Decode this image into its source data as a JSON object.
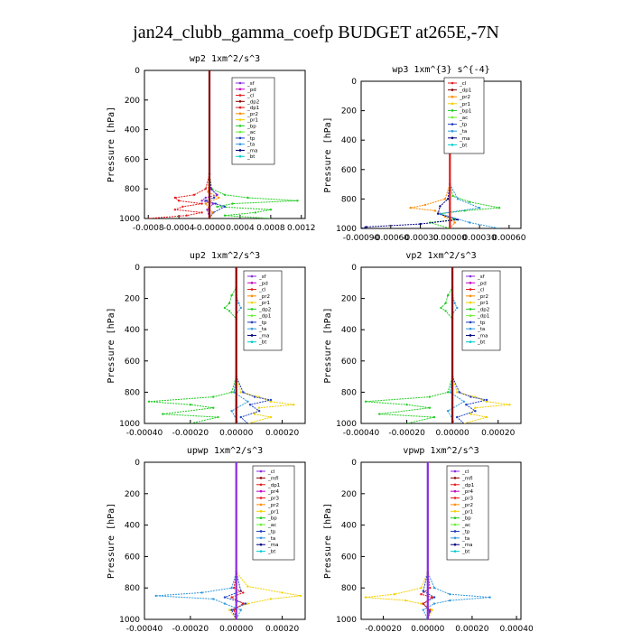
{
  "figure": {
    "title": "jan24_clubb_gamma_coefp  BUDGET at265E,-7N"
  },
  "colors": {
    "red": "#e41a1c",
    "darkred": "#8b0000",
    "purple": "#8a2be2",
    "magenta": "#c000c0",
    "orange": "#ff8c00",
    "yellow": "#f0d000",
    "green": "#22cc22",
    "lime": "#66ee33",
    "blue": "#1f3fbf",
    "skyblue": "#3399dd",
    "navy": "#000080",
    "cyan": "#00cccc",
    "black": "#000000"
  },
  "chart_data": [
    {
      "type": "line",
      "title": "wp2  1xm^2/s^3",
      "ylabel": "Pressure [hPa]",
      "ylim": [
        1000,
        0
      ],
      "yticks": [
        "0",
        "200",
        "400",
        "600",
        "800",
        "1000"
      ],
      "yticks_num": [
        0,
        200,
        400,
        600,
        800,
        1000
      ],
      "xlim": [
        -0.00085,
        0.00125
      ],
      "xticks_num": [
        -0.0008,
        -0.0004,
        0.0,
        0.0004,
        0.0008,
        0.0012
      ],
      "xticks": [
        "-0.0008",
        "-0.0004",
        "-0.0000",
        "0.0004",
        "0.0008",
        "0.0012"
      ],
      "legend": [
        "_sf",
        "_pd",
        "_cl",
        "_dp2",
        "_dp1",
        "_pr2",
        "_pr1",
        "_bp",
        "_ac",
        "_tp",
        "_ta",
        "_ma",
        "_bt"
      ],
      "legend_colors": [
        "purple",
        "magenta",
        "red",
        "darkred",
        "red",
        "orange",
        "yellow",
        "green",
        "lime",
        "blue",
        "skyblue",
        "navy",
        "cyan"
      ],
      "series": [
        {
          "color": "red",
          "p": [
            0,
            700,
            800,
            840,
            860,
            880,
            900,
            920,
            940,
            960,
            980,
            1000
          ],
          "v": [
            0,
            0,
            -5e-05,
            -0.0002,
            -0.00045,
            -0.0004,
            -0.0001,
            -0.00035,
            -0.00045,
            -0.0001,
            -0.0003,
            -0.0008
          ]
        },
        {
          "color": "green",
          "p": [
            0,
            700,
            800,
            840,
            860,
            880,
            900,
            920,
            940,
            960,
            980,
            1000
          ],
          "v": [
            0,
            0,
            3e-05,
            0.0002,
            0.0005,
            0.00115,
            0.0003,
            0.0001,
            0.0008,
            0.0006,
            0.0002,
            0.0008
          ]
        },
        {
          "color": "blue",
          "p": [
            0,
            700,
            800,
            840,
            860,
            880,
            900,
            920,
            960,
            1000
          ],
          "v": [
            0,
            0,
            2e-05,
            0.0001,
            6e-05,
            -5e-05,
            8e-05,
            0.0002,
            5e-05,
            0
          ]
        },
        {
          "color": "purple",
          "p": [
            0,
            700,
            800,
            840,
            860,
            880,
            900,
            940,
            1000
          ],
          "v": [
            0,
            0,
            1e-05,
            0.0001,
            -5e-05,
            -0.0001,
            5e-05,
            -3e-05,
            0
          ]
        },
        {
          "color": "orange",
          "p": [
            0,
            700,
            820,
            860,
            900,
            960,
            1000
          ],
          "v": [
            0,
            0,
            -2e-05,
            0.00012,
            -5e-05,
            4e-05,
            0
          ]
        },
        {
          "color": "darkred",
          "p": [
            0,
            1000
          ],
          "v": [
            0,
            0
          ],
          "thick": true
        }
      ]
    },
    {
      "type": "line",
      "title": "wp3  1xm^{3} s^{-4}",
      "ylabel": "Pressure [hPa]",
      "ylim": [
        1000,
        0
      ],
      "yticks": [
        "0",
        "200",
        "400",
        "600",
        "800",
        "1000"
      ],
      "yticks_num": [
        0,
        200,
        400,
        600,
        800,
        1000
      ],
      "xlim": [
        -0.0009,
        0.00072
      ],
      "xticks_num": [
        -0.0009,
        -0.0006,
        -0.0003,
        0.0,
        0.0003,
        0.0006
      ],
      "xticks": [
        "-0.00090",
        "-0.00060",
        "-0.00030",
        "0.00000",
        "0.00030",
        "0.00060"
      ],
      "legend": [
        "_cl",
        "_dp1",
        "_pr2",
        "_pr1",
        "_bp1",
        "_ac",
        "_tp",
        "_ta",
        "_ma",
        "_bt"
      ],
      "legend_colors": [
        "red",
        "darkred",
        "orange",
        "yellow",
        "green",
        "lime",
        "blue",
        "skyblue",
        "navy",
        "cyan"
      ],
      "series": [
        {
          "color": "green",
          "p": [
            0,
            700,
            780,
            820,
            860,
            880,
            900,
            940,
            960,
            1000
          ],
          "v": [
            0,
            0,
            3e-05,
            0.0002,
            0.0005,
            0.00015,
            -0.0001,
            5e-05,
            -0.0002,
            0
          ]
        },
        {
          "color": "orange",
          "p": [
            0,
            700,
            800,
            840,
            860,
            880,
            920,
            960,
            1000
          ],
          "v": [
            0,
            0,
            -5e-05,
            -0.00025,
            -0.0004,
            -0.00015,
            -5e-05,
            5e-05,
            0
          ]
        },
        {
          "color": "navy",
          "p": [
            0,
            700,
            800,
            850,
            900,
            940,
            970,
            990,
            1000
          ],
          "v": [
            0,
            0,
            -2e-05,
            -0.0001,
            -0.00012,
            8e-05,
            -0.0003,
            -0.00085,
            -0.0009
          ]
        },
        {
          "color": "skyblue",
          "p": [
            0,
            700,
            800,
            860,
            900,
            960,
            1000
          ],
          "v": [
            0,
            0,
            8e-05,
            0.0003,
            -0.0001,
            0.0002,
            0.0005
          ]
        },
        {
          "color": "red",
          "p": [
            0,
            1000
          ],
          "v": [
            0,
            0
          ],
          "thick": true
        }
      ]
    },
    {
      "type": "line",
      "title": "up2  1xm^2/s^3",
      "ylabel": "Pressure [hPa]",
      "ylim": [
        1000,
        0
      ],
      "yticks": [
        "0",
        "200",
        "400",
        "600",
        "800",
        "1000"
      ],
      "yticks_num": [
        0,
        200,
        400,
        600,
        800,
        1000
      ],
      "xlim": [
        -0.0004,
        0.0003
      ],
      "xticks_num": [
        -0.0004,
        -0.0002,
        0.0,
        0.0002
      ],
      "xticks": [
        "-0.00040",
        "-0.00020",
        "0.00000",
        "0.00020"
      ],
      "legend": [
        "_sf",
        "_pd",
        "_cl",
        "_pr2",
        "_pr1",
        "_dp2",
        "_dp1",
        "_tp",
        "_ta",
        "_ma",
        "_bt"
      ],
      "legend_colors": [
        "purple",
        "magenta",
        "red",
        "orange",
        "yellow",
        "green",
        "lime",
        "blue",
        "skyblue",
        "navy",
        "cyan"
      ],
      "series": [
        {
          "color": "green",
          "p": [
            0,
            130,
            180,
            230,
            260,
            280,
            330,
            700,
            800,
            830,
            860,
            880,
            900,
            940,
            960,
            1000
          ],
          "v": [
            0,
            0,
            -2e-05,
            -3e-05,
            -5e-05,
            -3e-05,
            0,
            0,
            -2e-05,
            -0.0001,
            -0.00038,
            -0.0002,
            -0.0001,
            -0.00032,
            -8e-05,
            -0.0002
          ]
        },
        {
          "color": "yellow",
          "p": [
            0,
            700,
            800,
            830,
            860,
            880,
            900,
            940,
            960,
            1000
          ],
          "v": [
            0,
            0,
            2e-05,
            0.0001,
            0.00015,
            0.00025,
            0.0001,
            8e-05,
            0.00015,
            5e-05
          ]
        },
        {
          "color": "blue",
          "p": [
            0,
            700,
            800,
            830,
            850,
            880,
            920,
            960,
            1000
          ],
          "v": [
            0,
            0,
            3e-05,
            8e-05,
            0.00015,
            6e-05,
            0.0001,
            2e-05,
            5e-05
          ]
        },
        {
          "color": "skyblue",
          "p": [
            0,
            180,
            230,
            260,
            300,
            700,
            800,
            860,
            920,
            1000
          ],
          "v": [
            0,
            0,
            1e-05,
            2e-05,
            0,
            0,
            -1e-05,
            5e-05,
            -2e-05,
            1e-05
          ]
        },
        {
          "color": "darkred",
          "p": [
            0,
            1000
          ],
          "v": [
            0,
            0
          ],
          "thick": true
        }
      ]
    },
    {
      "type": "line",
      "title": "vp2  1xm^2/s^3",
      "ylabel": "Pressure [hPa]",
      "ylim": [
        1000,
        0
      ],
      "yticks": [
        "0",
        "200",
        "400",
        "600",
        "800",
        "1000"
      ],
      "yticks_num": [
        0,
        200,
        400,
        600,
        800,
        1000
      ],
      "xlim": [
        -0.0004,
        0.0003
      ],
      "xticks_num": [
        -0.0004,
        -0.0002,
        0.0,
        0.0002
      ],
      "xticks": [
        "-0.00040",
        "-0.00020",
        "0.00000",
        "0.00020"
      ],
      "legend": [
        "_sf",
        "_pd",
        "_cl",
        "_pr2",
        "_pr1",
        "_dp2",
        "_dp1",
        "_tp",
        "_ta",
        "_ma",
        "_bt"
      ],
      "legend_colors": [
        "purple",
        "magenta",
        "red",
        "orange",
        "yellow",
        "green",
        "lime",
        "blue",
        "skyblue",
        "navy",
        "cyan"
      ],
      "series": [
        {
          "color": "green",
          "p": [
            0,
            130,
            180,
            230,
            260,
            280,
            330,
            700,
            800,
            830,
            860,
            880,
            900,
            940,
            960,
            1000
          ],
          "v": [
            0,
            0,
            -2e-05,
            -3e-05,
            -5e-05,
            -3e-05,
            0,
            0,
            -2e-05,
            -0.0001,
            -0.00038,
            -0.0002,
            -0.0001,
            -0.00032,
            -8e-05,
            -0.0002
          ]
        },
        {
          "color": "yellow",
          "p": [
            0,
            700,
            800,
            830,
            860,
            880,
            900,
            940,
            960,
            1000
          ],
          "v": [
            0,
            0,
            2e-05,
            0.0001,
            0.00015,
            0.00025,
            0.0001,
            8e-05,
            0.00015,
            5e-05
          ]
        },
        {
          "color": "blue",
          "p": [
            0,
            700,
            800,
            830,
            850,
            880,
            920,
            960,
            1000
          ],
          "v": [
            0,
            0,
            3e-05,
            8e-05,
            0.00015,
            6e-05,
            0.0001,
            2e-05,
            5e-05
          ]
        },
        {
          "color": "skyblue",
          "p": [
            0,
            180,
            230,
            260,
            300,
            700,
            800,
            860,
            920,
            1000
          ],
          "v": [
            0,
            0,
            1e-05,
            2e-05,
            0,
            0,
            -1e-05,
            5e-05,
            -2e-05,
            1e-05
          ]
        },
        {
          "color": "darkred",
          "p": [
            0,
            1000
          ],
          "v": [
            0,
            0
          ],
          "thick": true
        }
      ]
    },
    {
      "type": "line",
      "title": "upwp  1xm^2/s^3",
      "ylabel": "Pressure [hPa]",
      "ylim": [
        1000,
        0
      ],
      "yticks": [
        "0",
        "200",
        "400",
        "600",
        "800",
        "1000"
      ],
      "yticks_num": [
        0,
        200,
        400,
        600,
        800,
        1000
      ],
      "xlim": [
        -0.0004,
        0.0003
      ],
      "xticks_num": [
        -0.0004,
        -0.0002,
        0.0,
        0.0002
      ],
      "xticks": [
        "-0.00040",
        "-0.00020",
        "0.00000",
        "0.00020"
      ],
      "legend": [
        "_cl",
        "_mfl",
        "_dp1",
        "_pr4",
        "_pr3",
        "_pr2",
        "_pr1",
        "_bp",
        "_ac",
        "_tp",
        "_ta",
        "_ma",
        "_bt"
      ],
      "legend_colors": [
        "purple",
        "darkred",
        "red",
        "magenta",
        "red",
        "orange",
        "yellow",
        "green",
        "lime",
        "blue",
        "skyblue",
        "navy",
        "cyan"
      ],
      "series": [
        {
          "color": "skyblue",
          "p": [
            0,
            700,
            800,
            830,
            850,
            870,
            900,
            940,
            1000
          ],
          "v": [
            0,
            0,
            -2e-05,
            -0.00015,
            -0.00035,
            -0.0001,
            -5e-05,
            2e-05,
            0
          ]
        },
        {
          "color": "yellow",
          "p": [
            0,
            700,
            790,
            830,
            850,
            870,
            900,
            940,
            1000
          ],
          "v": [
            0,
            0,
            5e-05,
            0.0002,
            0.00028,
            0.00015,
            5e-05,
            -3e-05,
            0
          ]
        },
        {
          "color": "blue",
          "p": [
            0,
            700,
            820,
            860,
            900,
            940,
            1000
          ],
          "v": [
            0,
            0,
            2e-05,
            -5e-05,
            4e-05,
            -2e-05,
            0
          ]
        },
        {
          "color": "red",
          "p": [
            0,
            700,
            800,
            830,
            860,
            900,
            940,
            1000
          ],
          "v": [
            0,
            0,
            -1e-05,
            3e-05,
            -2e-05,
            3e-05,
            -1e-05,
            0
          ]
        },
        {
          "color": "purple",
          "p": [
            0,
            1000
          ],
          "v": [
            0,
            0
          ],
          "thick": true
        }
      ]
    },
    {
      "type": "line",
      "title": "vpwp  1xm^2/s^3",
      "ylabel": "Pressure [hPa]",
      "ylim": [
        1000,
        0
      ],
      "yticks": [
        "0",
        "200",
        "400",
        "600",
        "800",
        "1000"
      ],
      "yticks_num": [
        0,
        200,
        400,
        600,
        800,
        1000
      ],
      "xlim": [
        -0.0003,
        0.00042
      ],
      "xticks_num": [
        -0.0002,
        0.0,
        0.0002,
        0.0004
      ],
      "xticks": [
        "-0.00020",
        "0.00000",
        "0.00020",
        "0.00040"
      ],
      "legend": [
        "_cl",
        "_mfl",
        "_dp1",
        "_pr4",
        "_pr3",
        "_pr2",
        "_pr1",
        "_bp",
        "_ac",
        "_tp",
        "_ta",
        "_ma",
        "_bt"
      ],
      "legend_colors": [
        "purple",
        "darkred",
        "red",
        "magenta",
        "red",
        "orange",
        "yellow",
        "green",
        "lime",
        "blue",
        "skyblue",
        "navy",
        "cyan"
      ],
      "series": [
        {
          "color": "yellow",
          "p": [
            0,
            700,
            800,
            840,
            860,
            880,
            900,
            940,
            1000
          ],
          "v": [
            0,
            0,
            -3e-05,
            -0.00015,
            -0.00028,
            -0.0001,
            -3e-05,
            2e-05,
            0
          ]
        },
        {
          "color": "skyblue",
          "p": [
            0,
            700,
            800,
            840,
            860,
            880,
            900,
            940,
            1000
          ],
          "v": [
            0,
            0,
            3e-05,
            0.0001,
            0.00028,
            0.0001,
            3e-05,
            -2e-05,
            0
          ]
        },
        {
          "color": "blue",
          "p": [
            0,
            700,
            820,
            860,
            900,
            950,
            1000
          ],
          "v": [
            0,
            0,
            -2e-05,
            3e-05,
            -2e-05,
            1e-05,
            0
          ]
        },
        {
          "color": "red",
          "p": [
            0,
            700,
            800,
            840,
            860,
            900,
            940,
            1000
          ],
          "v": [
            0,
            0,
            1e-05,
            -3e-05,
            2e-05,
            -2e-05,
            1e-05,
            0
          ]
        },
        {
          "color": "purple",
          "p": [
            0,
            1000
          ],
          "v": [
            0,
            0
          ],
          "thick": true
        }
      ]
    }
  ]
}
